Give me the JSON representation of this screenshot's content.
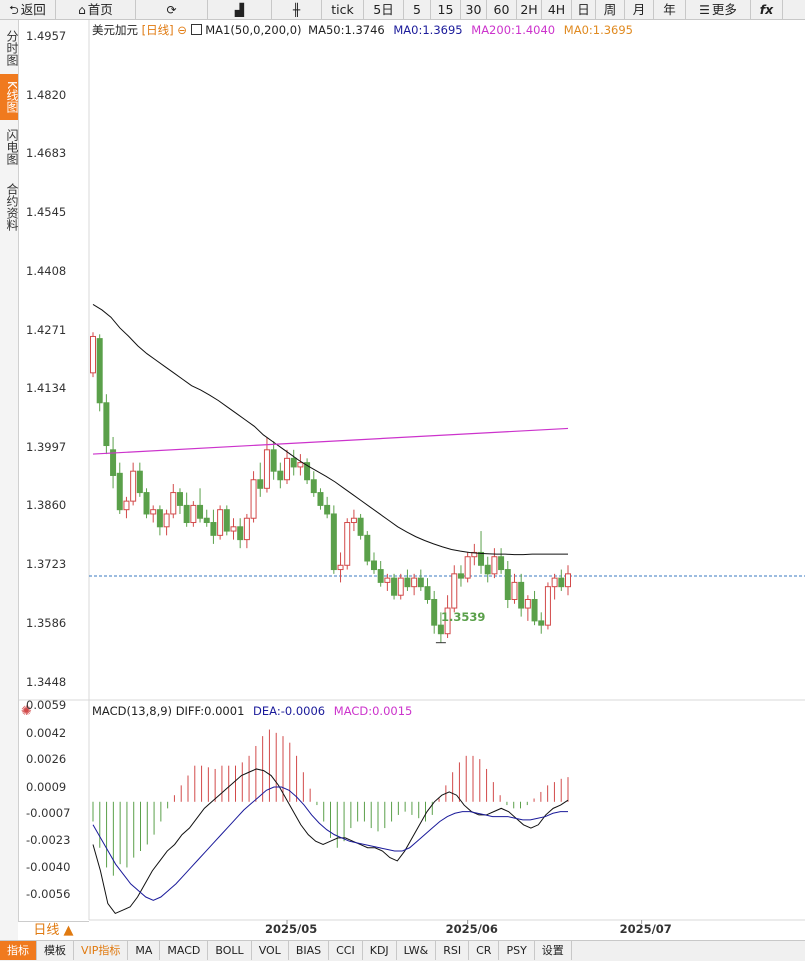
{
  "toolbar": [
    {
      "icon": "back-arrow-icon",
      "glyph": "⮌",
      "label": "返回",
      "w": 56
    },
    {
      "icon": "home-icon",
      "glyph": "⌂",
      "label": "首页",
      "w": 80
    },
    {
      "icon": "refresh-icon",
      "glyph": "⟳",
      "label": "",
      "w": 72
    },
    {
      "icon": "bar-chart-icon",
      "glyph": "▟",
      "label": "",
      "w": 64
    },
    {
      "icon": "candlestick-icon",
      "glyph": "╫",
      "label": "",
      "w": 50
    },
    {
      "icon": "",
      "glyph": "",
      "label": "tick",
      "w": 42
    },
    {
      "icon": "",
      "glyph": "",
      "label": "5日",
      "w": 40
    },
    {
      "icon": "",
      "glyph": "",
      "label": "5",
      "w": 27
    },
    {
      "icon": "",
      "glyph": "",
      "label": "15",
      "w": 30
    },
    {
      "icon": "",
      "glyph": "",
      "label": "30",
      "w": 26
    },
    {
      "icon": "",
      "glyph": "",
      "label": "60",
      "w": 30
    },
    {
      "icon": "",
      "glyph": "",
      "label": "2H",
      "w": 25
    },
    {
      "icon": "",
      "glyph": "",
      "label": "4H",
      "w": 30
    },
    {
      "icon": "",
      "glyph": "",
      "label": "日",
      "w": 24
    },
    {
      "icon": "",
      "glyph": "",
      "label": "周",
      "w": 29
    },
    {
      "icon": "",
      "glyph": "",
      "label": "月",
      "w": 29
    },
    {
      "icon": "",
      "glyph": "",
      "label": "年",
      "w": 32
    },
    {
      "icon": "menu-icon",
      "glyph": "☰",
      "label": "更多",
      "w": 65
    },
    {
      "icon": "function-icon",
      "glyph": "",
      "label": "fx",
      "w": 32
    }
  ],
  "left_tabs": [
    "分时图",
    "K线图",
    "闪电图",
    "合约资料"
  ],
  "main_legend": {
    "symbol": "美元加元",
    "period": "[日线]",
    "toggle_glyph": "⊖",
    "ma_label": "MA1(50,0,200,0)",
    "ma50": "MA50:1.3746",
    "ma0_a": "MA0:1.3695",
    "ma200": "MA200:1.4040",
    "ma0_b": "MA0:1.3695"
  },
  "macd_legend": {
    "label": "MACD(13,8,9)",
    "diff": "DIFF:0.0001",
    "dea": "DEA:-0.0006",
    "macd": "MACD:0.0015"
  },
  "low_label": "1.3539",
  "period_label": "日线 ▲",
  "bottom_tabs": [
    "指标",
    "模板",
    "VIP指标",
    "MA",
    "MACD",
    "BOLL",
    "VOL",
    "BIAS",
    "CCI",
    "KDJ",
    "LW&",
    "RSI",
    "CR",
    "PSY",
    "设置"
  ],
  "colors": {
    "up": "#d24a4a",
    "down": "#5aa04a",
    "ma50": "#111111",
    "ma200": "#cc33cc",
    "ma0": "#e08a20",
    "dea": "#1a1a9a",
    "dashed": "#3a7ac0"
  },
  "chart_data": [
    {
      "type": "candlestick",
      "title": "美元加元 [日线]",
      "ylim": [
        1.3405,
        1.4995
      ],
      "y_ticks": [
        "1.4957",
        "1.4820",
        "1.4683",
        "1.4545",
        "1.4408",
        "1.4271",
        "1.4134",
        "1.3997",
        "1.3860",
        "1.3723",
        "1.3586",
        "1.3448"
      ],
      "x_ticks": [
        "2025/05",
        "2025/06",
        "2025/07"
      ],
      "x_tick_index": [
        29,
        56,
        82
      ],
      "current_price_line": 1.3695,
      "ohlc": [
        [
          1.417,
          1.4265,
          1.416,
          1.4255
        ],
        [
          1.425,
          1.426,
          1.408,
          1.41
        ],
        [
          1.41,
          1.412,
          1.398,
          1.4
        ],
        [
          1.399,
          1.402,
          1.39,
          1.393
        ],
        [
          1.3935,
          1.396,
          1.384,
          1.385
        ],
        [
          1.385,
          1.388,
          1.383,
          1.387
        ],
        [
          1.387,
          1.396,
          1.386,
          1.394
        ],
        [
          1.394,
          1.396,
          1.388,
          1.389
        ],
        [
          1.389,
          1.39,
          1.383,
          1.384
        ],
        [
          1.384,
          1.386,
          1.382,
          1.385
        ],
        [
          1.385,
          1.386,
          1.379,
          1.381
        ],
        [
          1.381,
          1.385,
          1.379,
          1.384
        ],
        [
          1.384,
          1.391,
          1.383,
          1.389
        ],
        [
          1.389,
          1.39,
          1.384,
          1.386
        ],
        [
          1.386,
          1.389,
          1.381,
          1.382
        ],
        [
          1.382,
          1.387,
          1.381,
          1.386
        ],
        [
          1.386,
          1.39,
          1.382,
          1.383
        ],
        [
          1.383,
          1.385,
          1.381,
          1.382
        ],
        [
          1.382,
          1.385,
          1.377,
          1.379
        ],
        [
          1.379,
          1.386,
          1.378,
          1.385
        ],
        [
          1.385,
          1.386,
          1.379,
          1.38
        ],
        [
          1.38,
          1.383,
          1.378,
          1.381
        ],
        [
          1.381,
          1.383,
          1.376,
          1.378
        ],
        [
          1.378,
          1.384,
          1.376,
          1.383
        ],
        [
          1.383,
          1.394,
          1.382,
          1.392
        ],
        [
          1.392,
          1.396,
          1.388,
          1.39
        ],
        [
          1.39,
          1.402,
          1.389,
          1.399
        ],
        [
          1.399,
          1.401,
          1.392,
          1.394
        ],
        [
          1.394,
          1.396,
          1.39,
          1.392
        ],
        [
          1.392,
          1.399,
          1.391,
          1.397
        ],
        [
          1.397,
          1.399,
          1.393,
          1.395
        ],
        [
          1.395,
          1.398,
          1.393,
          1.396
        ],
        [
          1.396,
          1.397,
          1.391,
          1.392
        ],
        [
          1.392,
          1.394,
          1.388,
          1.389
        ],
        [
          1.389,
          1.39,
          1.385,
          1.386
        ],
        [
          1.386,
          1.388,
          1.383,
          1.384
        ],
        [
          1.384,
          1.386,
          1.37,
          1.371
        ],
        [
          1.371,
          1.375,
          1.368,
          1.372
        ],
        [
          1.372,
          1.383,
          1.371,
          1.382
        ],
        [
          1.382,
          1.385,
          1.38,
          1.383
        ],
        [
          1.383,
          1.384,
          1.378,
          1.379
        ],
        [
          1.379,
          1.38,
          1.372,
          1.373
        ],
        [
          1.373,
          1.375,
          1.37,
          1.371
        ],
        [
          1.371,
          1.373,
          1.367,
          1.368
        ],
        [
          1.368,
          1.37,
          1.366,
          1.369
        ],
        [
          1.369,
          1.37,
          1.364,
          1.365
        ],
        [
          1.365,
          1.37,
          1.364,
          1.369
        ],
        [
          1.369,
          1.371,
          1.366,
          1.367
        ],
        [
          1.367,
          1.37,
          1.365,
          1.369
        ],
        [
          1.369,
          1.371,
          1.366,
          1.367
        ],
        [
          1.367,
          1.369,
          1.363,
          1.364
        ],
        [
          1.364,
          1.366,
          1.356,
          1.358
        ],
        [
          1.358,
          1.361,
          1.3539,
          1.356
        ],
        [
          1.356,
          1.365,
          1.355,
          1.362
        ],
        [
          1.362,
          1.372,
          1.361,
          1.37
        ],
        [
          1.37,
          1.372,
          1.367,
          1.369
        ],
        [
          1.369,
          1.375,
          1.368,
          1.374
        ],
        [
          1.374,
          1.377,
          1.372,
          1.375
        ],
        [
          1.375,
          1.38,
          1.37,
          1.372
        ],
        [
          1.372,
          1.374,
          1.368,
          1.37
        ],
        [
          1.37,
          1.376,
          1.369,
          1.374
        ],
        [
          1.374,
          1.376,
          1.37,
          1.371
        ],
        [
          1.371,
          1.373,
          1.362,
          1.364
        ],
        [
          1.364,
          1.37,
          1.363,
          1.368
        ],
        [
          1.368,
          1.37,
          1.36,
          1.362
        ],
        [
          1.362,
          1.365,
          1.359,
          1.364
        ],
        [
          1.364,
          1.366,
          1.358,
          1.359
        ],
        [
          1.359,
          1.361,
          1.356,
          1.358
        ],
        [
          1.358,
          1.368,
          1.357,
          1.367
        ],
        [
          1.367,
          1.37,
          1.364,
          1.369
        ],
        [
          1.369,
          1.371,
          1.366,
          1.367
        ],
        [
          1.367,
          1.372,
          1.365,
          1.37
        ]
      ],
      "ma50": [
        1.433,
        1.4317,
        1.43,
        1.4275,
        1.4255,
        1.4233,
        1.4215,
        1.42,
        1.4185,
        1.417,
        1.4155,
        1.414,
        1.413,
        1.4118,
        1.4105,
        1.409,
        1.4075,
        1.406,
        1.4045,
        1.4025,
        1.401,
        1.3995,
        1.398,
        1.3965,
        1.3952,
        1.394,
        1.3928,
        1.3915,
        1.39,
        1.3885,
        1.387,
        1.3855,
        1.384,
        1.3825,
        1.381,
        1.3798,
        1.3787,
        1.3778,
        1.377,
        1.3763,
        1.3757,
        1.3753,
        1.375,
        1.3748,
        1.3747,
        1.3746,
        1.3746,
        1.3745,
        1.3745,
        1.3746,
        1.3746,
        1.3746,
        1.3746,
        1.3746
      ],
      "ma50_start": 18,
      "ma200": [
        1.398,
        1.404
      ],
      "macd": {
        "ylim": [
          -0.0072,
          0.0062
        ],
        "y_ticks": [
          "0.0059",
          "0.0042",
          "0.0026",
          "0.0009",
          "-0.0007",
          "-0.0023",
          "-0.0040",
          "-0.0056"
        ],
        "hist": [
          -0.0012,
          -0.0028,
          -0.004,
          -0.0045,
          -0.0038,
          -0.004,
          -0.0034,
          -0.003,
          -0.0026,
          -0.002,
          -0.0012,
          -0.0004,
          0.0004,
          0.001,
          0.0016,
          0.0022,
          0.0022,
          0.0021,
          0.002,
          0.0022,
          0.0022,
          0.0022,
          0.0024,
          0.0028,
          0.0034,
          0.004,
          0.0044,
          0.0042,
          0.004,
          0.0036,
          0.0028,
          0.0018,
          0.0008,
          -0.0002,
          -0.0012,
          -0.0022,
          -0.0028,
          -0.0024,
          -0.0016,
          -0.0012,
          -0.0012,
          -0.0016,
          -0.0018,
          -0.0016,
          -0.0012,
          -0.0008,
          -0.0006,
          -0.0008,
          -0.001,
          -0.0012,
          -0.0008,
          0.0002,
          0.001,
          0.0018,
          0.0024,
          0.0028,
          0.0028,
          0.0026,
          0.002,
          0.0012,
          0.0004,
          -0.0002,
          -0.0004,
          -0.0004,
          -0.0002,
          0.0002,
          0.0006,
          0.001,
          0.0012,
          0.0014,
          0.0015
        ],
        "diff": [
          -0.0026,
          -0.0042,
          -0.0062,
          -0.0068,
          -0.0066,
          -0.0064,
          -0.0058,
          -0.005,
          -0.0042,
          -0.0036,
          -0.003,
          -0.0026,
          -0.002,
          -0.0016,
          -0.001,
          -0.0004,
          0.0,
          0.0004,
          0.0008,
          0.0012,
          0.0016,
          0.0018,
          0.002,
          0.0019,
          0.0016,
          0.001,
          0.0002,
          -0.0006,
          -0.0014,
          -0.002,
          -0.0024,
          -0.0026,
          -0.0024,
          -0.0022,
          -0.0022,
          -0.0024,
          -0.0026,
          -0.0028,
          -0.0028,
          -0.003,
          -0.0034,
          -0.0036,
          -0.003,
          -0.0022,
          -0.0014,
          -0.0006,
          0.0,
          0.0004,
          0.0006,
          0.0004,
          -0.0002,
          -0.0006,
          -0.0008,
          -0.0008,
          -0.0006,
          -0.0004,
          -0.0006,
          -0.001,
          -0.0014,
          -0.0016,
          -0.0014,
          -0.0008,
          -0.0004,
          -0.0002,
          0.0001
        ],
        "dea": [
          -0.0014,
          -0.0022,
          -0.003,
          -0.0038,
          -0.0044,
          -0.005,
          -0.0054,
          -0.0058,
          -0.006,
          -0.0058,
          -0.0054,
          -0.005,
          -0.0045,
          -0.004,
          -0.0035,
          -0.003,
          -0.0025,
          -0.002,
          -0.0015,
          -0.001,
          -0.0005,
          -0.0001,
          0.0003,
          0.0007,
          0.0009,
          0.0009,
          0.0007,
          0.0003,
          -0.0002,
          -0.0008,
          -0.0013,
          -0.0017,
          -0.002,
          -0.0022,
          -0.0024,
          -0.0025,
          -0.0026,
          -0.0027,
          -0.0028,
          -0.0029,
          -0.003,
          -0.003,
          -0.0028,
          -0.0024,
          -0.002,
          -0.0016,
          -0.0012,
          -0.0009,
          -0.0007,
          -0.0006,
          -0.0006,
          -0.0007,
          -0.0008,
          -0.0009,
          -0.0009,
          -0.0009,
          -0.001,
          -0.0011,
          -0.0011,
          -0.001,
          -0.0009,
          -0.0007,
          -0.0006,
          -0.0006
        ]
      }
    }
  ]
}
